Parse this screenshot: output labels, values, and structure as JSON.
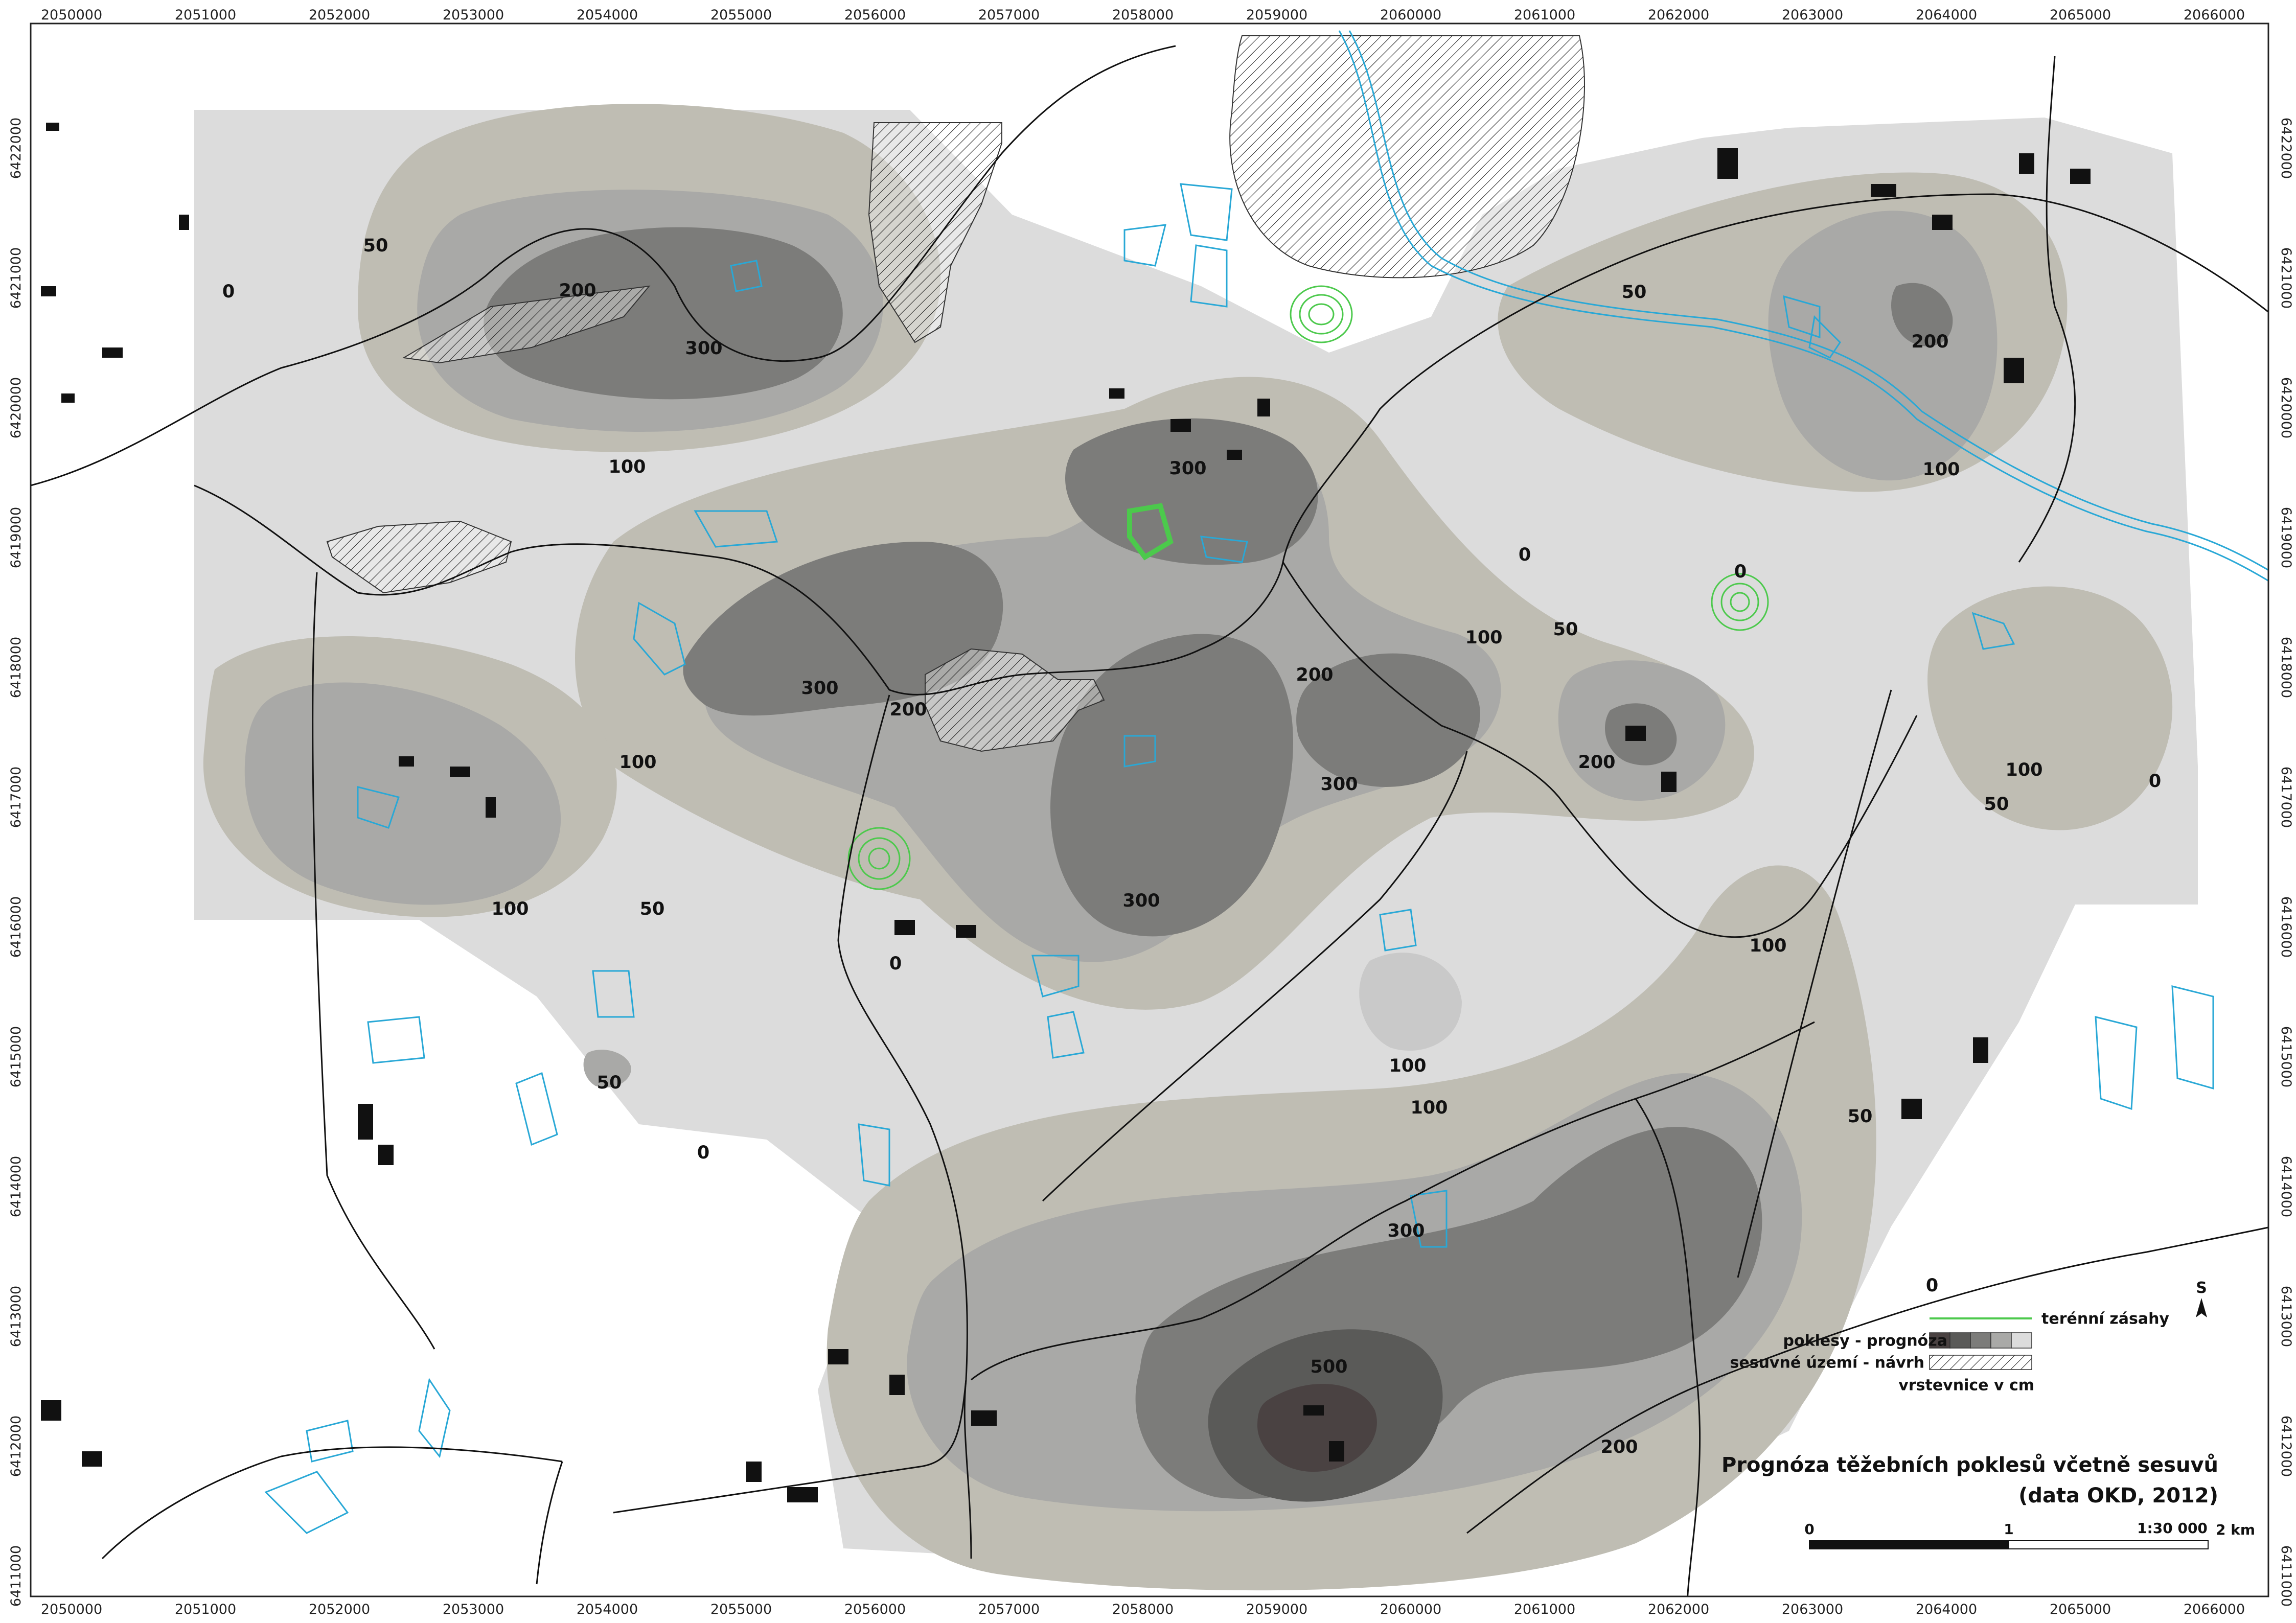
{
  "map": {
    "title_line1": "Prognóza těžebních poklesů včetně sesuvů",
    "title_line2": "(data OKD, 2012)",
    "north_label": "S",
    "scale": {
      "ratio": "1:30 000",
      "tick0": "0",
      "tick1": "1",
      "tick2": "2 km"
    },
    "legend": {
      "items": [
        {
          "label": "terénní zásahy",
          "symbol": "green-line"
        },
        {
          "label": "poklesy - prognóza",
          "symbol": "gray-ramp"
        },
        {
          "label": "sesuvné území - návrh",
          "symbol": "hatch"
        },
        {
          "label": "vrstevnice v cm",
          "symbol": "none"
        }
      ]
    },
    "x_ticks": [
      "2050000",
      "2051000",
      "2052000",
      "2053000",
      "2054000",
      "2055000",
      "2056000",
      "2057000",
      "2058000",
      "2059000",
      "2060000",
      "2061000",
      "2062000",
      "2063000",
      "2064000",
      "2065000",
      "2066000"
    ],
    "y_ticks": [
      "6422000",
      "6421000",
      "6420000",
      "6419000",
      "6418000",
      "6417000",
      "6416000",
      "6415000",
      "6414000",
      "6413000",
      "6412000",
      "6411000"
    ],
    "contour_labels": [
      "50",
      "0",
      "200",
      "300",
      "100",
      "300",
      "0",
      "100",
      "50",
      "200",
      "100",
      "300",
      "200",
      "300",
      "200",
      "0",
      "100",
      "50",
      "0",
      "100",
      "50",
      "100",
      "50",
      "100",
      "300",
      "0",
      "100",
      "50",
      "100",
      "0",
      "300",
      "50",
      "500",
      "200",
      "0"
    ],
    "colors": {
      "class_0_50": "#dcdcdc",
      "class_50_100": "#bfbdb3",
      "class_100_200": "#a9a9a7",
      "class_200_300": "#7c7c7a",
      "class_300_500": "#5a5a58",
      "class_500": "#4a4242",
      "water": "#29a8d6",
      "terrain_works": "#4cc94c",
      "roads": "#111111",
      "buildings": "#111111"
    }
  }
}
